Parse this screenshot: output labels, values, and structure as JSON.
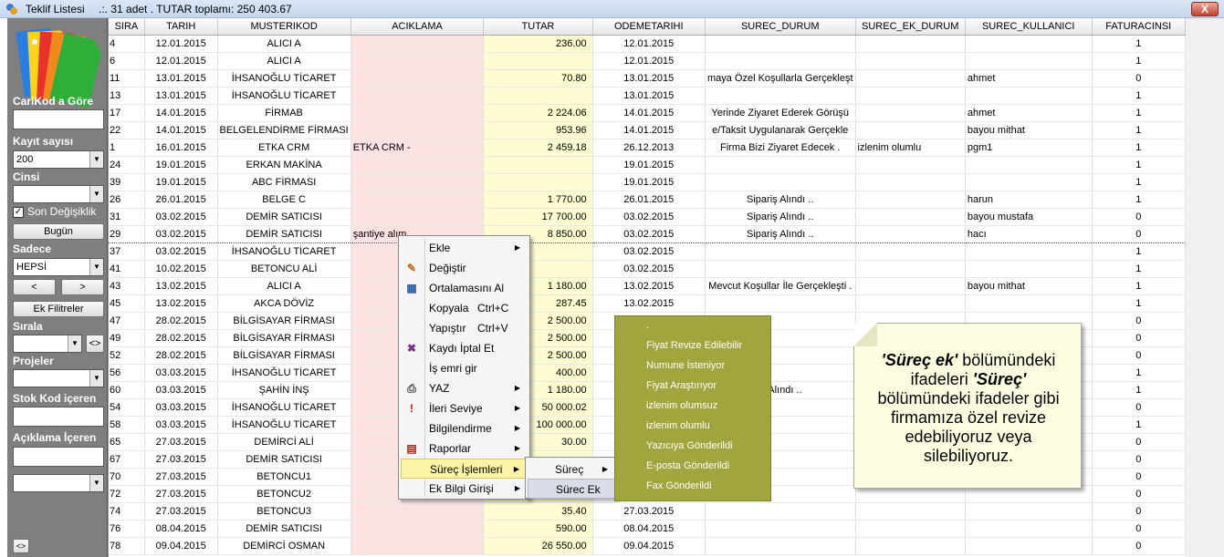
{
  "window": {
    "title": "Teklif Listesi",
    "info": ".:. 31 adet . TUTAR toplamı: 250 403.67",
    "close": "X"
  },
  "sidebar": {
    "carikod_label": "CariKod a Göre",
    "kayit_label": "Kayıt sayısı",
    "kayit_value": "200",
    "cinsi_label": "Cinsi",
    "cinsi_value": "",
    "son_degisiklik_label": "Son Değişiklik",
    "bugun_button": "Bugün",
    "sadece_label": "Sadece",
    "sadece_value": "HEPSİ",
    "prev_button": "<",
    "next_button": ">",
    "ek_filtreler_button": "Ek Filitreler",
    "sirala_label": "Sırala",
    "sirala_toggle": "<>",
    "projeler_label": "Projeler",
    "stok_kod_label": "Stok Kod içeren",
    "aciklama_label": "Açıklama İçeren",
    "bottom_toggle": "<>"
  },
  "grid": {
    "columns": [
      "SIRA",
      "TARIH",
      "MUSTERIKOD",
      "ACIKLAMA",
      "TUTAR",
      "ODEMETARIHI",
      "SUREC_DURUM",
      "SUREC_EK_DURUM",
      "SUREC_KULLANICI",
      "FATURACINSI"
    ],
    "rows": [
      [
        "4",
        "12.01.2015",
        "ALICI A",
        "",
        "236.00",
        "12.01.2015",
        "",
        "",
        "",
        "1"
      ],
      [
        "6",
        "12.01.2015",
        "ALICI A",
        "",
        "",
        "12.01.2015",
        "",
        "",
        "",
        "1"
      ],
      [
        "11",
        "13.01.2015",
        "İHSANOĞLU TİCARET",
        "",
        "70.80",
        "13.01.2015",
        "maya Özel Koşullarla Gerçekleşt",
        "",
        "ahmet",
        "0"
      ],
      [
        "13",
        "13.01.2015",
        "İHSANOĞLU TİCARET",
        "",
        "",
        "13.01.2015",
        "",
        "",
        "",
        "1"
      ],
      [
        "17",
        "14.01.2015",
        "FİRMAB",
        "",
        "2 224.06",
        "14.01.2015",
        " Yerinde Ziyaret Ederek Görüşü",
        "",
        "ahmet",
        "1"
      ],
      [
        "22",
        "14.01.2015",
        "BELGELENDİRME FİRMASI",
        "",
        "953.96",
        "14.01.2015",
        "e/Taksit Uygulanarak Gerçekle",
        "",
        "bayou mithat",
        "1"
      ],
      [
        "1",
        "16.01.2015",
        "ETKA CRM",
        "ETKA CRM -",
        "2 459.18",
        "26.12.2013",
        "Firma Bizi Ziyaret Edecek .",
        "izlenim olumlu",
        "pgm1",
        "1"
      ],
      [
        "24",
        "19.01.2015",
        "ERKAN MAKİNA",
        "",
        "",
        "19.01.2015",
        "",
        "",
        "",
        "1"
      ],
      [
        "39",
        "19.01.2015",
        "ABC FİRMASI",
        "",
        "",
        "19.01.2015",
        "",
        "",
        "",
        "1"
      ],
      [
        "26",
        "26.01.2015",
        "BELGE C",
        "",
        "1 770.00",
        "26.01.2015",
        "Sipariş Alındı ..",
        "",
        "harun",
        "1"
      ],
      [
        "31",
        "03.02.2015",
        "DEMİR SATICISI",
        "",
        "17 700.00",
        "03.02.2015",
        "Sipariş Alındı ..",
        "",
        "bayou mustafa",
        "0"
      ],
      [
        "29",
        "03.02.2015",
        "DEMİR SATICISI",
        "şantiye alım",
        "8 850.00",
        "03.02.2015",
        "Sipariş Alındı ..",
        "",
        "hacı",
        "0"
      ],
      [
        "37",
        "03.02.2015",
        "İHSANOĞLU TİCARET",
        "",
        "",
        "03.02.2015",
        "",
        "",
        "",
        "1"
      ],
      [
        "41",
        "10.02.2015",
        "BETONCU ALİ",
        "",
        "",
        "03.02.2015",
        "",
        "",
        "",
        "1"
      ],
      [
        "43",
        "13.02.2015",
        "ALICI A",
        "",
        "1 180.00",
        "13.02.2015",
        "Mevcut Koşullar İle Gerçekleşti .",
        "",
        "bayou mithat",
        "1"
      ],
      [
        "45",
        "13.02.2015",
        "AKCA DÖVİZ",
        "",
        "287.45",
        "13.02.2015",
        "",
        "",
        "",
        "1"
      ],
      [
        "47",
        "28.02.2015",
        "BİLGİSAYAR FİRMASI",
        "",
        "2 500.00",
        "",
        "",
        "",
        "",
        "0"
      ],
      [
        "49",
        "28.02.2015",
        "BİLGİSAYAR FİRMASI",
        "",
        "2 500.00",
        "",
        "",
        "",
        "",
        "0"
      ],
      [
        "52",
        "28.02.2015",
        "BİLGİSAYAR FİRMASI",
        "",
        "2 500.00",
        "",
        "",
        "",
        "",
        "0"
      ],
      [
        "56",
        "03.03.2015",
        "İHSANOĞLU TİCARET",
        "",
        "400.00",
        "",
        "",
        "",
        "",
        "1"
      ],
      [
        "60",
        "03.03.2015",
        "ŞAHİN İNŞ",
        "",
        "1 180.00",
        "",
        "iş Alındı ..",
        "",
        "",
        "1"
      ],
      [
        "54",
        "03.03.2015",
        "İHSANOĞLU TİCARET",
        "",
        "50 000.02",
        "",
        "",
        "",
        "",
        "0"
      ],
      [
        "58",
        "03.03.2015",
        "İHSANOĞLU TİCARET",
        "",
        "100 000.00",
        "",
        "",
        "",
        "",
        "1"
      ],
      [
        "65",
        "27.03.2015",
        "DEMİRCİ ALİ",
        "",
        "30.00",
        "",
        "",
        "",
        "",
        "0"
      ],
      [
        "67",
        "27.03.2015",
        "DEMİR SATICISI",
        "",
        "",
        "",
        "",
        "",
        "",
        "0"
      ],
      [
        "70",
        "27.03.2015",
        "BETONCU1",
        "",
        "",
        "",
        "",
        "",
        "",
        "0"
      ],
      [
        "72",
        "27.03.2015",
        "BETONCU2",
        "",
        "",
        "",
        "",
        "",
        "",
        "0"
      ],
      [
        "74",
        "27.03.2015",
        "BETONCU3",
        "",
        "35.40",
        "27.03.2015",
        "",
        "",
        "",
        "0"
      ],
      [
        "76",
        "08.04.2015",
        "DEMİR SATICISI",
        "",
        "590.00",
        "08.04.2015",
        "",
        "",
        "",
        "0"
      ],
      [
        "78",
        "09.04.2015",
        "DEMİRCİ OSMAN",
        "",
        "26 550.00",
        "09.04.2015",
        "",
        "",
        "",
        "0"
      ]
    ]
  },
  "context_menu": {
    "items": [
      {
        "label": "Ekle",
        "shortcut": "",
        "sub": true,
        "icon": ""
      },
      {
        "label": "Değiştir",
        "shortcut": "",
        "sub": false,
        "icon": "pencil-icon"
      },
      {
        "label": "Ortalamasını Al",
        "shortcut": "",
        "sub": false,
        "icon": "calculator-icon"
      },
      {
        "label": "Kopyala",
        "shortcut": "Ctrl+C",
        "sub": false,
        "icon": ""
      },
      {
        "label": "Yapıştır",
        "shortcut": "Ctrl+V",
        "sub": false,
        "icon": ""
      },
      {
        "label": "Kaydı İptal Et",
        "shortcut": "",
        "sub": false,
        "icon": "cancel-record-icon"
      },
      {
        "label": "İş emri gir",
        "shortcut": "",
        "sub": false,
        "icon": ""
      },
      {
        "label": "YAZ",
        "shortcut": "",
        "sub": true,
        "icon": "printer-icon"
      },
      {
        "label": "İleri Seviye",
        "shortcut": "",
        "sub": true,
        "icon": "exclamation-icon"
      },
      {
        "label": "Bilgilendirme",
        "shortcut": "",
        "sub": true,
        "icon": ""
      },
      {
        "label": "Raporlar",
        "shortcut": "",
        "sub": true,
        "icon": "report-icon"
      },
      {
        "label": "Süreç İşlemleri",
        "shortcut": "",
        "sub": true,
        "icon": ""
      },
      {
        "label": "Ek Bilgi Girişi",
        "shortcut": "",
        "sub": true,
        "icon": ""
      }
    ]
  },
  "surec_menu": {
    "items": [
      "Süreç",
      "Sürec Ek"
    ]
  },
  "surec_ek_menu": {
    "items": [
      ".",
      "Fiyat Revize Edilebilir",
      "Numune İsteniyor",
      "Fiyat Araştırıyor",
      "izlenim olumsuz",
      "izlenim olumlu",
      "Yazıcıya Gönderildi",
      "E-posta Gönderildi",
      "Fax Gönderildi"
    ]
  },
  "note": {
    "part1": "'Süreç ek'",
    "part2": " bölümündeki ifadeleri ",
    "part3": "'Süreç'",
    "part4": " bölümündeki ifadeler gibi firmamıza özel revize edebiliyoruz veya silebiliyoruz."
  }
}
